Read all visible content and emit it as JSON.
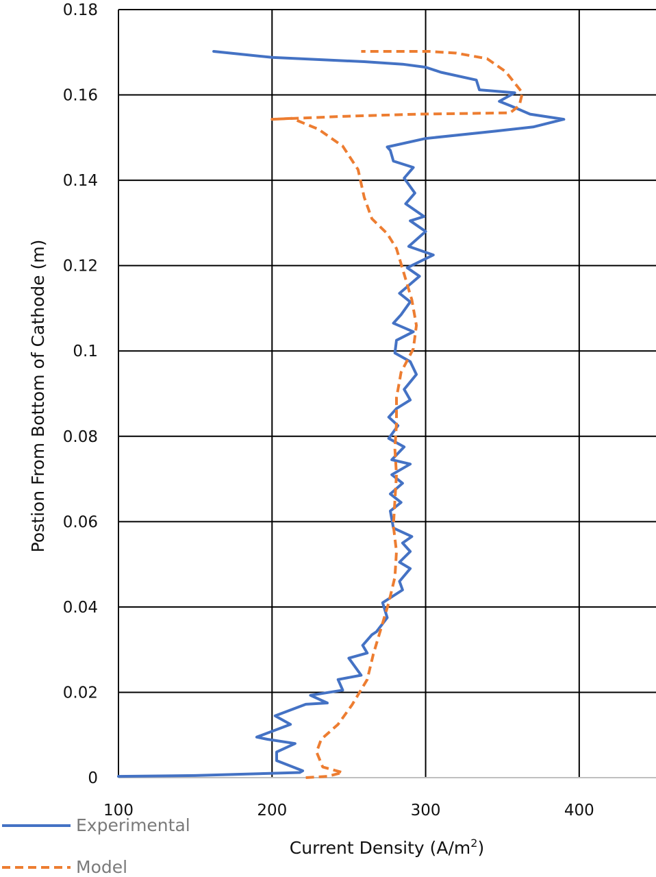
{
  "chart_data": {
    "type": "line",
    "title": "",
    "xlabel": "Current Density (A/m",
    "xlabel_superscript": "2",
    "xlabel_suffix": ")",
    "ylabel": "Postion From Bottom of Cathode (m)",
    "xlim": [
      100,
      450
    ],
    "ylim": [
      0,
      0.18
    ],
    "x_ticks": [
      100,
      200,
      300,
      400
    ],
    "x_tick_labels": [
      "100",
      "200",
      "300",
      "400"
    ],
    "y_ticks": [
      0,
      0.02,
      0.04,
      0.06,
      0.08,
      0.1,
      0.12,
      0.14,
      0.16,
      0.18
    ],
    "y_tick_labels": [
      "0",
      "0.02",
      "0.04",
      "0.06",
      "0.08",
      "0.1",
      "0.12",
      "0.14",
      "0.16",
      "0.18"
    ],
    "grid": true,
    "legend_position": "bottom-left",
    "series": [
      {
        "name": "Experimental",
        "color": "#4472C4",
        "style": "solid",
        "points": [
          [
            100,
            0.0003
          ],
          [
            150,
            0.0005
          ],
          [
            218,
            0.0012
          ],
          [
            220,
            0.0016
          ],
          [
            210,
            0.003
          ],
          [
            203,
            0.004
          ],
          [
            203,
            0.006
          ],
          [
            215,
            0.008
          ],
          [
            197,
            0.009
          ],
          [
            190,
            0.0095
          ],
          [
            212,
            0.0125
          ],
          [
            202,
            0.0145
          ],
          [
            222,
            0.0172
          ],
          [
            236,
            0.0175
          ],
          [
            225,
            0.0193
          ],
          [
            246,
            0.0205
          ],
          [
            243,
            0.023
          ],
          [
            258,
            0.024
          ],
          [
            250,
            0.028
          ],
          [
            262,
            0.0292
          ],
          [
            259,
            0.031
          ],
          [
            265,
            0.0335
          ],
          [
            268,
            0.0342
          ],
          [
            275,
            0.0375
          ],
          [
            272,
            0.041
          ],
          [
            285,
            0.044
          ],
          [
            283,
            0.046
          ],
          [
            290,
            0.049
          ],
          [
            283,
            0.0505
          ],
          [
            290,
            0.053
          ],
          [
            285,
            0.055
          ],
          [
            291,
            0.0565
          ],
          [
            279,
            0.0585
          ],
          [
            277,
            0.0625
          ],
          [
            284,
            0.0645
          ],
          [
            277,
            0.0665
          ],
          [
            285,
            0.069
          ],
          [
            278,
            0.071
          ],
          [
            290,
            0.0735
          ],
          [
            278,
            0.0745
          ],
          [
            286,
            0.0775
          ],
          [
            276,
            0.0795
          ],
          [
            282,
            0.0825
          ],
          [
            276,
            0.0845
          ],
          [
            281,
            0.0865
          ],
          [
            290,
            0.0885
          ],
          [
            286,
            0.091
          ],
          [
            294,
            0.0945
          ],
          [
            290,
            0.0975
          ],
          [
            280,
            0.0995
          ],
          [
            281,
            0.1025
          ],
          [
            292,
            0.1045
          ],
          [
            279,
            0.1065
          ],
          [
            284,
            0.1085
          ],
          [
            290,
            0.1115
          ],
          [
            283,
            0.1135
          ],
          [
            296,
            0.1175
          ],
          [
            288,
            0.1195
          ],
          [
            305,
            0.1225
          ],
          [
            289,
            0.1245
          ],
          [
            300,
            0.128
          ],
          [
            290,
            0.1305
          ],
          [
            299,
            0.1315
          ],
          [
            287,
            0.1345
          ],
          [
            293,
            0.137
          ],
          [
            286,
            0.1405
          ],
          [
            292,
            0.143
          ],
          [
            279,
            0.1445
          ],
          [
            277,
            0.147
          ],
          [
            275,
            0.1478
          ],
          [
            300,
            0.1498
          ],
          [
            345,
            0.1515
          ],
          [
            370,
            0.1525
          ],
          [
            390,
            0.1543
          ],
          [
            368,
            0.1555
          ],
          [
            355,
            0.1575
          ],
          [
            348,
            0.1585
          ],
          [
            358,
            0.1605
          ],
          [
            335,
            0.1612
          ],
          [
            333,
            0.1635
          ],
          [
            310,
            0.1653
          ],
          [
            300,
            0.1665
          ],
          [
            285,
            0.1672
          ],
          [
            260,
            0.1678
          ],
          [
            200,
            0.1688
          ],
          [
            162,
            0.1702
          ]
        ]
      },
      {
        "name": "Model",
        "color": "#ED7D31",
        "style": "dashed",
        "points": [
          [
            222,
            0
          ],
          [
            236,
            0.0003
          ],
          [
            246,
            0.0012
          ],
          [
            233,
            0.0025
          ],
          [
            229,
            0.006
          ],
          [
            232,
            0.009
          ],
          [
            243,
            0.0125
          ],
          [
            252,
            0.017
          ],
          [
            262,
            0.023
          ],
          [
            266,
            0.029
          ],
          [
            271,
            0.035
          ],
          [
            276,
            0.041
          ],
          [
            280,
            0.047
          ],
          [
            281,
            0.053
          ],
          [
            279,
            0.059
          ],
          [
            280,
            0.065
          ],
          [
            281,
            0.071
          ],
          [
            280,
            0.077
          ],
          [
            281,
            0.083
          ],
          [
            281,
            0.089
          ],
          [
            284,
            0.095
          ],
          [
            292,
            0.1005
          ],
          [
            294,
            0.106
          ],
          [
            291,
            0.112
          ],
          [
            286,
            0.118
          ],
          [
            281,
            0.124
          ],
          [
            275,
            0.1275
          ],
          [
            265,
            0.131
          ],
          [
            260,
            0.136
          ],
          [
            256,
            0.1425
          ],
          [
            246,
            0.148
          ],
          [
            230,
            0.152
          ],
          [
            213,
            0.1545
          ],
          [
            200,
            0.1543
          ],
          [
            248,
            0.155
          ],
          [
            295,
            0.1555
          ],
          [
            355,
            0.1558
          ],
          [
            361,
            0.1575
          ],
          [
            363,
            0.1605
          ],
          [
            352,
            0.1655
          ],
          [
            340,
            0.1685
          ],
          [
            320,
            0.1698
          ],
          [
            302,
            0.1702
          ],
          [
            258,
            0.1702
          ]
        ]
      }
    ]
  }
}
